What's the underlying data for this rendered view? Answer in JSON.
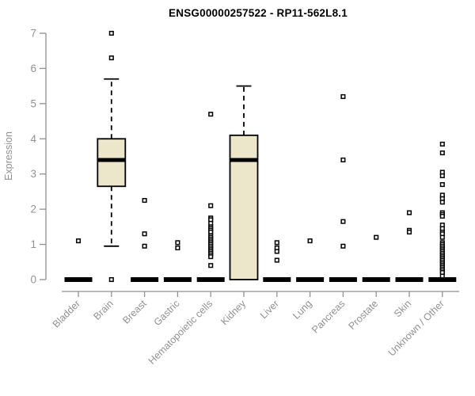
{
  "chart_data": {
    "type": "boxplot",
    "title": "ENSG00000257522 - RP11-562L8.1",
    "ylabel": "Expression",
    "ylim": [
      0,
      7
    ],
    "yticks": [
      0,
      1,
      2,
      3,
      4,
      5,
      6,
      7
    ],
    "grid": false,
    "legend": false,
    "categories": [
      "Bladder",
      "Brain",
      "Breast",
      "Gastric",
      "Hematopoietic cells",
      "Kidney",
      "Liver",
      "Lung",
      "Pancreas",
      "Prostate",
      "Skin",
      "Unknown / Other"
    ],
    "boxes": [
      {
        "category": "Bladder",
        "collapsed": true,
        "q1": 0,
        "median": 0,
        "q3": 0,
        "whisker_low": 0,
        "whisker_high": 0,
        "outliers": [
          1.1
        ]
      },
      {
        "category": "Brain",
        "collapsed": false,
        "q1": 2.65,
        "median": 3.4,
        "q3": 4.0,
        "whisker_low": 0.95,
        "whisker_high": 5.7,
        "outliers": [
          7.0,
          6.3,
          0
        ]
      },
      {
        "category": "Breast",
        "collapsed": true,
        "q1": 0,
        "median": 0,
        "q3": 0,
        "whisker_low": 0,
        "whisker_high": 0,
        "outliers": [
          2.25,
          1.3,
          0.95
        ]
      },
      {
        "category": "Gastric",
        "collapsed": true,
        "q1": 0,
        "median": 0,
        "q3": 0,
        "whisker_low": 0,
        "whisker_high": 0,
        "outliers": [
          1.05,
          0.9
        ]
      },
      {
        "category": "Hematopoietic cells",
        "collapsed": true,
        "q1": 0,
        "median": 0,
        "q3": 0,
        "whisker_low": 0,
        "whisker_high": 0,
        "outliers": [
          4.7,
          2.1,
          1.75,
          1.7,
          1.6,
          1.5,
          1.45,
          1.4,
          1.35,
          1.25,
          1.2,
          1.15,
          1.1,
          1.05,
          1.0,
          0.95,
          0.9,
          0.85,
          0.8,
          0.75,
          0.7,
          0.65,
          0.4
        ]
      },
      {
        "category": "Kidney",
        "collapsed": false,
        "q1": 0,
        "median": 3.4,
        "q3": 4.1,
        "whisker_low": 0,
        "whisker_high": 5.5,
        "outliers": []
      },
      {
        "category": "Liver",
        "collapsed": true,
        "q1": 0,
        "median": 0,
        "q3": 0,
        "whisker_low": 0,
        "whisker_high": 0,
        "outliers": [
          1.05,
          0.9,
          0.8,
          0.55
        ]
      },
      {
        "category": "Lung",
        "collapsed": true,
        "q1": 0,
        "median": 0,
        "q3": 0,
        "whisker_low": 0,
        "whisker_high": 0,
        "outliers": [
          1.1
        ]
      },
      {
        "category": "Pancreas",
        "collapsed": true,
        "q1": 0,
        "median": 0,
        "q3": 0,
        "whisker_low": 0,
        "whisker_high": 0,
        "outliers": [
          5.2,
          3.4,
          1.65,
          0.95
        ]
      },
      {
        "category": "Prostate",
        "collapsed": true,
        "q1": 0,
        "median": 0,
        "q3": 0,
        "whisker_low": 0,
        "whisker_high": 0,
        "outliers": [
          1.2
        ]
      },
      {
        "category": "Skin",
        "collapsed": true,
        "q1": 0,
        "median": 0,
        "q3": 0,
        "whisker_low": 0,
        "whisker_high": 0,
        "outliers": [
          1.9,
          1.4,
          1.35
        ]
      },
      {
        "category": "Unknown / Other",
        "collapsed": true,
        "q1": 0,
        "median": 0,
        "q3": 0,
        "whisker_low": 0,
        "whisker_high": 0,
        "outliers": [
          3.85,
          3.6,
          3.05,
          2.95,
          2.7,
          2.4,
          2.3,
          2.2,
          1.9,
          1.85,
          1.8,
          1.55,
          1.45,
          1.35,
          1.3,
          1.2,
          1.05,
          1.0,
          0.95,
          0.9,
          0.85,
          0.8,
          0.75,
          0.7,
          0.65,
          0.6,
          0.55,
          0.5,
          0.45,
          0.4,
          0.35,
          0.3,
          0.25,
          0.2,
          0.1
        ]
      }
    ],
    "colors": {
      "box_fill": "#ece7cb",
      "box_stroke": "#000000",
      "median": "#000000",
      "whisker": "#000000",
      "outlier": "#000000",
      "axis": "#919191",
      "tick_label": "#919191",
      "title": "#000000",
      "background": "#ffffff"
    }
  }
}
